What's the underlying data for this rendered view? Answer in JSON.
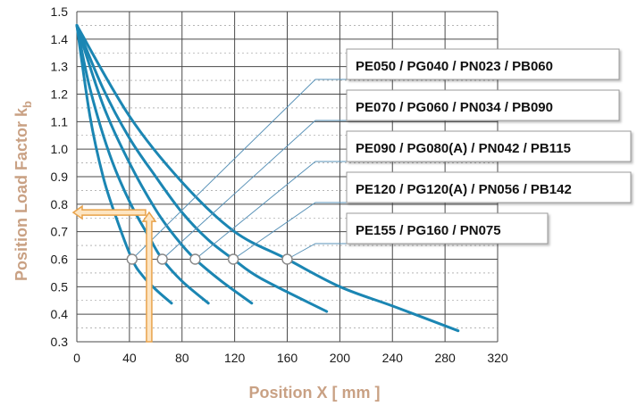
{
  "chart_data": {
    "type": "line",
    "xlabel": "Position X [ mm ]",
    "ylabel": {
      "main": "Position Load Factor k",
      "subscript": "b"
    },
    "xlim": [
      0,
      320
    ],
    "ylim": [
      0.3,
      1.5
    ],
    "x_ticks": [
      "0",
      "40",
      "80",
      "120",
      "160",
      "200",
      "240",
      "280",
      "320"
    ],
    "x_tick_values": [
      0,
      40,
      80,
      120,
      160,
      200,
      240,
      280,
      320
    ],
    "y_ticks": [
      "0.3",
      "0.4",
      "0.5",
      "0.6",
      "0.7",
      "0.8",
      "0.9",
      "1.0",
      "1.1",
      "1.2",
      "1.3",
      "1.4",
      "1.5"
    ],
    "y_tick_values": [
      0.3,
      0.4,
      0.5,
      0.6,
      0.7,
      0.8,
      0.9,
      1.0,
      1.1,
      1.2,
      1.3,
      1.4,
      1.5
    ],
    "grid": true,
    "legend_placement": "right, outside plot area",
    "series": [
      {
        "name": "PE050 / PG040 / PN023 / PB060",
        "marker": [
          42,
          0.6
        ],
        "points": [
          [
            0,
            1.45
          ],
          [
            10,
            1.12
          ],
          [
            20,
            0.9
          ],
          [
            30,
            0.75
          ],
          [
            42,
            0.6
          ],
          [
            50,
            0.54
          ],
          [
            60,
            0.49
          ],
          [
            72,
            0.44
          ]
        ]
      },
      {
        "name": "PE070 / PG060 / PN034 / PB090",
        "marker": [
          65,
          0.6
        ],
        "points": [
          [
            0,
            1.45
          ],
          [
            10,
            1.22
          ],
          [
            25,
            0.98
          ],
          [
            40,
            0.81
          ],
          [
            55,
            0.68
          ],
          [
            65,
            0.6
          ],
          [
            80,
            0.52
          ],
          [
            100,
            0.44
          ]
        ]
      },
      {
        "name": "PE090 / PG080(A) / PN042 / PB115",
        "marker": [
          90,
          0.6
        ],
        "points": [
          [
            0,
            1.45
          ],
          [
            20,
            1.16
          ],
          [
            40,
            0.95
          ],
          [
            60,
            0.78
          ],
          [
            75,
            0.68
          ],
          [
            90,
            0.6
          ],
          [
            110,
            0.52
          ],
          [
            133,
            0.44
          ]
        ]
      },
      {
        "name": "PE120 / PG120(A) / PN056 / PB142",
        "marker": [
          119,
          0.6
        ],
        "points": [
          [
            0,
            1.45
          ],
          [
            20,
            1.22
          ],
          [
            40,
            1.04
          ],
          [
            60,
            0.9
          ],
          [
            80,
            0.77
          ],
          [
            100,
            0.67
          ],
          [
            119,
            0.6
          ],
          [
            140,
            0.53
          ],
          [
            190,
            0.41
          ]
        ]
      },
      {
        "name": "PE155 / PG160 / PN075",
        "marker": [
          160,
          0.6
        ],
        "points": [
          [
            0,
            1.45
          ],
          [
            40,
            1.12
          ],
          [
            80,
            0.88
          ],
          [
            120,
            0.7
          ],
          [
            160,
            0.6
          ],
          [
            200,
            0.5
          ],
          [
            240,
            0.43
          ],
          [
            290,
            0.34
          ]
        ]
      }
    ],
    "annotation": {
      "description": "orange arrows reading load factor at position",
      "x": 55,
      "y": 0.77
    }
  },
  "colors": {
    "curve": "#1b86b3",
    "leader": "#5a93b8",
    "grid": "#4a4a4a",
    "axis_title": "#c9a184",
    "arrow_fill": "#fde5c2",
    "arrow_stroke": "#e8a24a",
    "legend_border": "#9a9a9a"
  }
}
